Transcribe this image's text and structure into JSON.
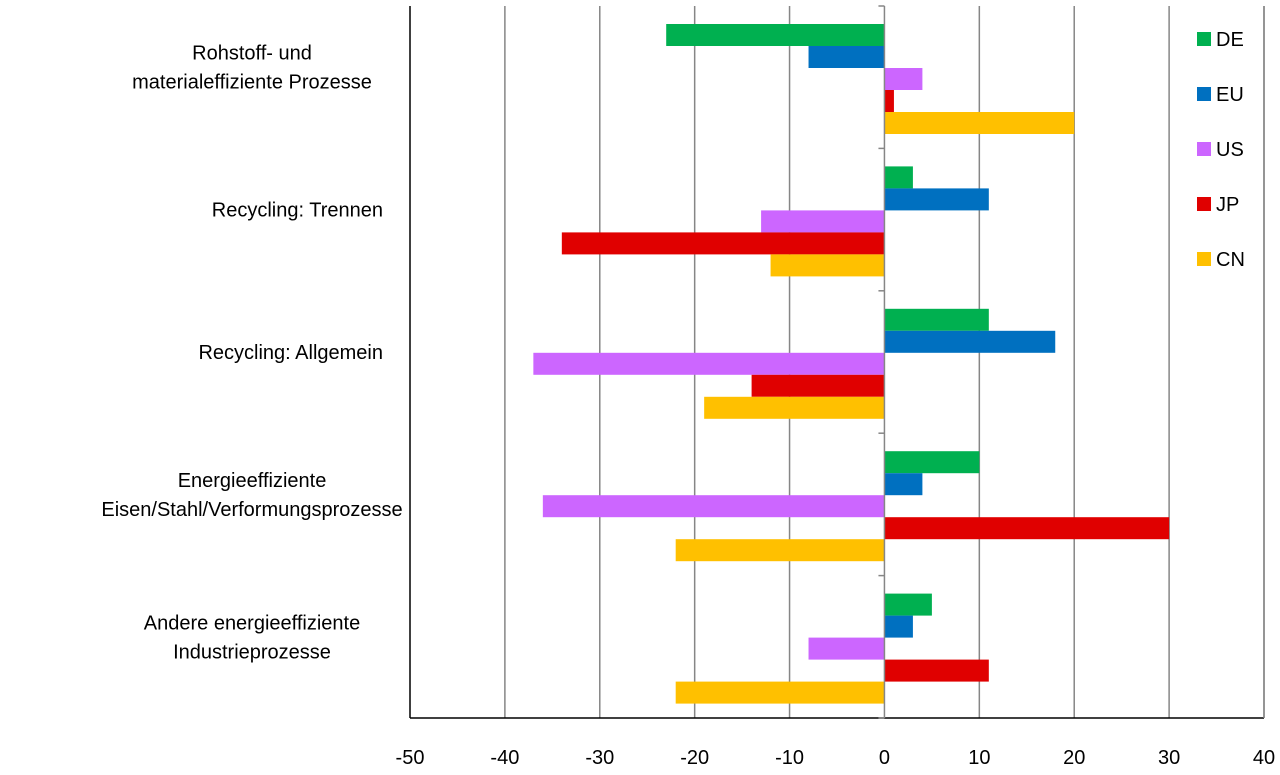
{
  "chart_data": {
    "type": "bar",
    "orientation": "horizontal",
    "categories": [
      [
        "Rohstoff- und",
        "materialeffiziente Prozesse"
      ],
      [
        "Recycling: Trennen"
      ],
      [
        "Recycling: Allgemein"
      ],
      [
        "Energieeffiziente",
        "Eisen/Stahl/Verformungsprozesse"
      ],
      [
        "Andere energieeffiziente",
        "Industrieprozesse"
      ]
    ],
    "series": [
      {
        "name": "DE",
        "color": "#00b050",
        "values": [
          -23,
          3,
          11,
          10,
          5
        ]
      },
      {
        "name": "EU",
        "color": "#0070c0",
        "values": [
          -8,
          11,
          18,
          4,
          3
        ]
      },
      {
        "name": "US",
        "color": "#cc66ff",
        "values": [
          4,
          -13,
          -37,
          -36,
          -8
        ]
      },
      {
        "name": "JP",
        "color": "#e00000",
        "values": [
          1,
          -34,
          -14,
          30,
          11
        ]
      },
      {
        "name": "CN",
        "color": "#ffc000",
        "values": [
          20,
          -12,
          -19,
          -22,
          -22
        ]
      }
    ],
    "xlim": [
      -50,
      40
    ],
    "xticks": [
      "-50",
      "-40",
      "-30",
      "-20",
      "-10",
      "0",
      "10",
      "20",
      "30",
      "40"
    ],
    "grid": true,
    "legend": "top-right"
  }
}
